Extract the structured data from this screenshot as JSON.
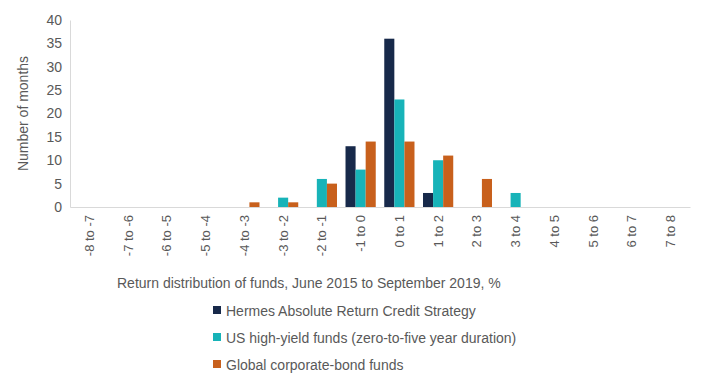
{
  "chart_data": {
    "type": "bar",
    "x_label": "Return distribution of funds, June 2015 to September 2019, %",
    "y_label": "Number of months",
    "categories": [
      "-8 to -7",
      "-7 to -6",
      "-6 to -5",
      "-5 to -4",
      "-4 to -3",
      "-3 to -2",
      "-2 to -1",
      "-1 to 0",
      "0 to 1",
      "1 to 2",
      "2 to 3",
      "3 to 4",
      "4 to 5",
      "5 to 6",
      "6 to 7",
      "7 to 8"
    ],
    "series": [
      {
        "name": "Hermes Absolute Return Credit Strategy",
        "color": "#17294a",
        "values": [
          0,
          0,
          0,
          0,
          0,
          0,
          0,
          13,
          36,
          3,
          0,
          0,
          0,
          0,
          0,
          0
        ]
      },
      {
        "name": "US high-yield funds (zero-to-five year duration)",
        "color": "#17b3b8",
        "values": [
          0,
          0,
          0,
          0,
          0,
          2,
          6,
          8,
          23,
          10,
          0,
          3,
          0,
          0,
          0,
          0
        ]
      },
      {
        "name": "Global corporate-bond funds",
        "color": "#c8601c",
        "values": [
          0,
          0,
          0,
          0,
          1,
          1,
          5,
          14,
          14,
          11,
          6,
          0,
          0,
          0,
          0,
          0
        ]
      }
    ],
    "ylim": [
      0,
      40
    ],
    "yticks": [
      0,
      5,
      10,
      15,
      20,
      25,
      30,
      35,
      40
    ],
    "grid": false,
    "legend": "bottom"
  }
}
